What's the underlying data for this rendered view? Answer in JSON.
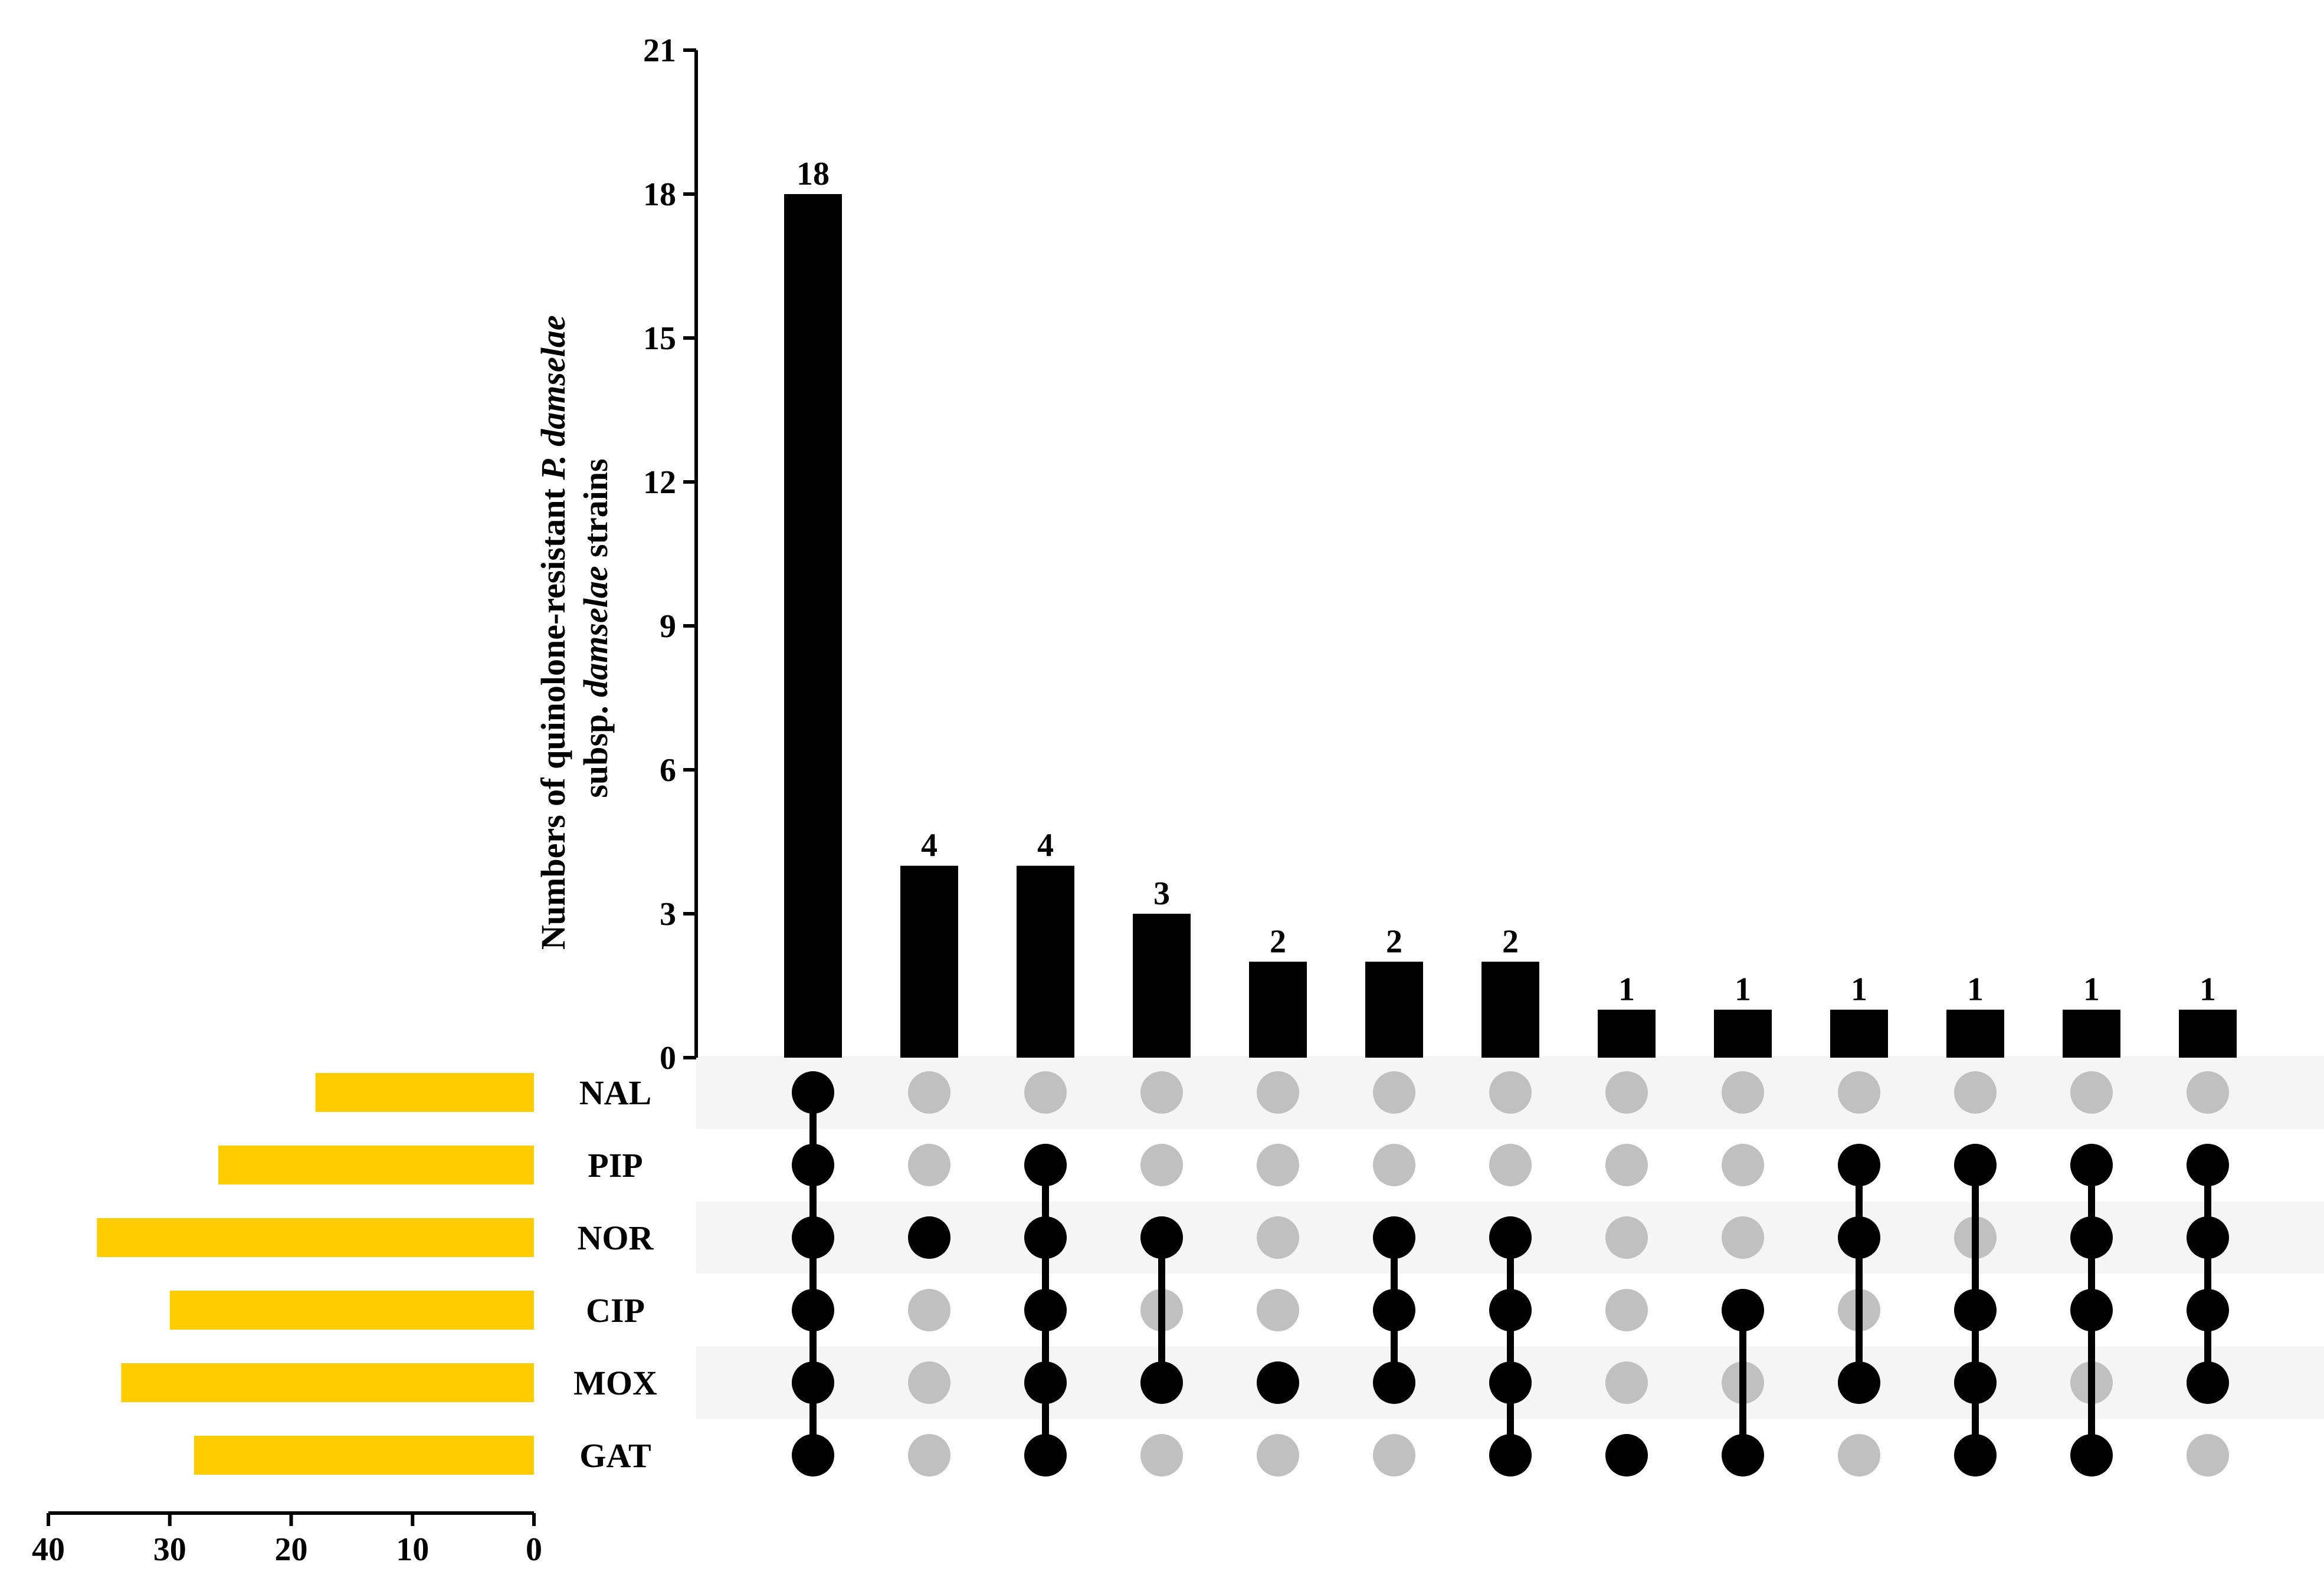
{
  "chart_data": {
    "type": "upset",
    "ylabel_line1_parts": [
      "Numbers of quinolone-resistant ",
      "P. damselae"
    ],
    "ylabel_line2_parts": [
      "subsp. ",
      "damselae",
      " strains"
    ],
    "yticks": [
      0,
      3,
      6,
      9,
      12,
      15,
      18,
      21
    ],
    "ylim": [
      0,
      21
    ],
    "sets": [
      "NAL",
      "PIP",
      "NOR",
      "CIP",
      "MOX",
      "GAT"
    ],
    "set_sizes": [
      18,
      26,
      36,
      30,
      34,
      28
    ],
    "set_size_ticks": [
      40,
      30,
      20,
      10,
      0
    ],
    "set_size_xlim": [
      0,
      40
    ],
    "intersections": [
      {
        "value": 18,
        "members": [
          "NAL",
          "PIP",
          "NOR",
          "CIP",
          "MOX",
          "GAT"
        ]
      },
      {
        "value": 4,
        "members": [
          "NOR"
        ]
      },
      {
        "value": 4,
        "members": [
          "PIP",
          "NOR",
          "CIP",
          "MOX",
          "GAT"
        ]
      },
      {
        "value": 3,
        "members": [
          "NOR",
          "MOX"
        ]
      },
      {
        "value": 2,
        "members": [
          "MOX"
        ]
      },
      {
        "value": 2,
        "members": [
          "NOR",
          "CIP",
          "MOX"
        ]
      },
      {
        "value": 2,
        "members": [
          "NOR",
          "CIP",
          "MOX",
          "GAT"
        ]
      },
      {
        "value": 1,
        "members": [
          "GAT"
        ]
      },
      {
        "value": 1,
        "members": [
          "CIP",
          "GAT"
        ]
      },
      {
        "value": 1,
        "members": [
          "PIP",
          "NOR",
          "MOX"
        ]
      },
      {
        "value": 1,
        "members": [
          "PIP",
          "CIP",
          "MOX",
          "GAT"
        ]
      },
      {
        "value": 1,
        "members": [
          "PIP",
          "NOR",
          "CIP",
          "GAT"
        ]
      },
      {
        "value": 1,
        "members": [
          "PIP",
          "NOR",
          "CIP",
          "MOX"
        ]
      }
    ],
    "colors": {
      "bar": "#000000",
      "set_bar": "#FFCC00",
      "dot_active": "#000000",
      "dot_inactive": "#C0C0C0",
      "row_shade": "#F5F5F5"
    }
  }
}
